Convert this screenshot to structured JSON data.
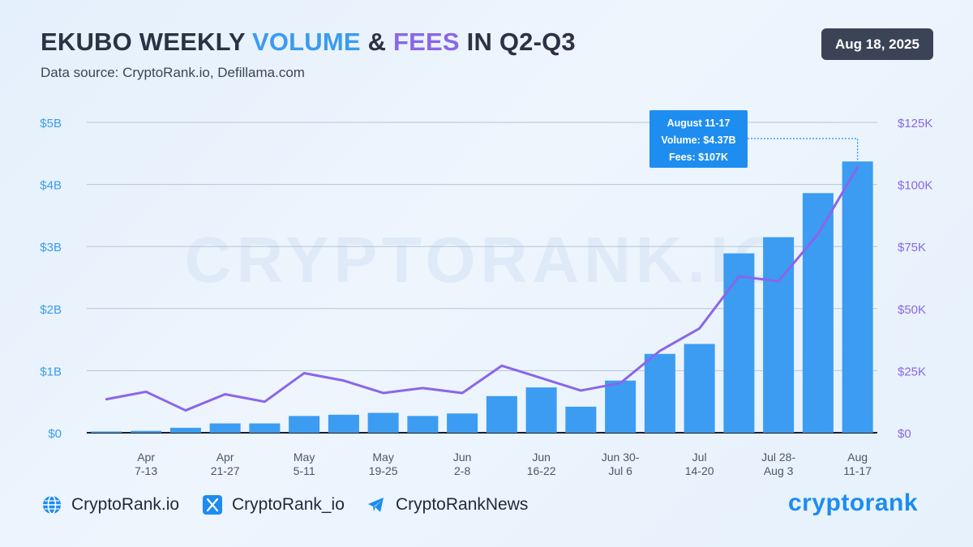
{
  "header": {
    "title_parts": [
      {
        "text": "EKUBO WEEKLY ",
        "style": "plain"
      },
      {
        "text": "VOLUME",
        "style": "volume"
      },
      {
        "text": " & ",
        "style": "plain"
      },
      {
        "text": "FEES",
        "style": "fees"
      },
      {
        "text": " IN Q2-Q3",
        "style": "plain"
      }
    ],
    "subtitle": "Data source: CryptoRank.io, Defillama.com",
    "date": "Aug 18, 2025"
  },
  "colors": {
    "volume": "#3a9bf0",
    "fees": "#8a66e8",
    "bars": "#3c9cf2",
    "tooltip": "#1e8df0",
    "badge": "#3b4357"
  },
  "watermark": "CRYPTORANK.IO",
  "chart_data": {
    "type": "bar",
    "left_axis": {
      "min": 0,
      "max": 5000000000,
      "ticks": [
        "$0",
        "$1B",
        "$2B",
        "$3B",
        "$4B",
        "$5B"
      ]
    },
    "right_axis": {
      "min": 0,
      "max": 125000,
      "ticks": [
        "$0",
        "$25K",
        "$50K",
        "$75K",
        "$100K",
        "$125K"
      ]
    },
    "grid": true,
    "x_tick_labels": [
      {
        "index": 1,
        "lines": [
          "Apr",
          "7-13"
        ]
      },
      {
        "index": 3,
        "lines": [
          "Apr",
          "21-27"
        ]
      },
      {
        "index": 5,
        "lines": [
          "May",
          "5-11"
        ]
      },
      {
        "index": 7,
        "lines": [
          "May",
          "19-25"
        ]
      },
      {
        "index": 9,
        "lines": [
          "Jun",
          "2-8"
        ]
      },
      {
        "index": 11,
        "lines": [
          "Jun",
          "16-22"
        ]
      },
      {
        "index": 13,
        "lines": [
          "Jun 30-",
          "Jul 6"
        ]
      },
      {
        "index": 15,
        "lines": [
          "Jul",
          "14-20"
        ]
      },
      {
        "index": 17,
        "lines": [
          "Jul 28-",
          "Aug 3"
        ]
      },
      {
        "index": 19,
        "lines": [
          "Aug",
          "11-17"
        ]
      }
    ],
    "series": [
      {
        "axis": "left",
        "type": "bar",
        "values": [
          20000000,
          30000000,
          80000000,
          150000000,
          150000000,
          270000000,
          290000000,
          320000000,
          270000000,
          310000000,
          590000000,
          730000000,
          420000000,
          840000000,
          1270000000,
          1430000000,
          2890000000,
          3150000000,
          3860000000,
          4370000000
        ]
      },
      {
        "axis": "right",
        "type": "line",
        "values": [
          13500,
          16500,
          9000,
          15500,
          12500,
          24000,
          21000,
          16000,
          18000,
          16000,
          27000,
          22000,
          17000,
          20000,
          33000,
          42000,
          63000,
          61000,
          80000,
          107000
        ]
      }
    ],
    "tooltip": {
      "index": 19,
      "lines": [
        "August 11-17",
        "Volume: $4.37B",
        "Fees: $107K"
      ]
    }
  },
  "footer": {
    "website": "CryptoRank.io",
    "x_handle": "CryptoRank_io",
    "telegram": "CryptoRankNews",
    "brand": "cryptorank"
  }
}
